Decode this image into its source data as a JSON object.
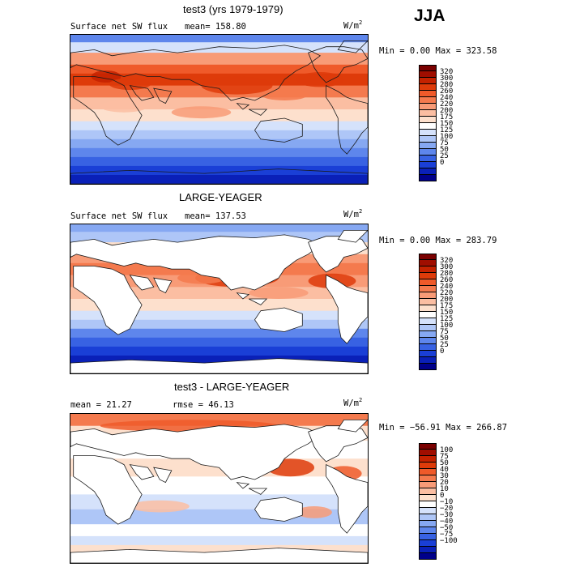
{
  "season": "JJA",
  "unit_base": "W/m",
  "unit_exp": "2",
  "panels": [
    {
      "title": "test3 (yrs 1979-1979)",
      "left_label": "Surface net SW flux",
      "center_label": "mean= 158.80",
      "stats": "Min =    0.00 Max = 323.58",
      "colors": [
        "#7a0000",
        "#a00e00",
        "#c42200",
        "#de3b0a",
        "#ef5a2a",
        "#f47a4e",
        "#f89b77",
        "#fbbea2",
        "#fde0cd",
        "#ffffff",
        "#d5e2fb",
        "#aec6f7",
        "#86a8f2",
        "#5e86ec",
        "#3862e3",
        "#1a3fd6",
        "#0a20b8",
        "#00008a"
      ],
      "labels": [
        "320",
        "300",
        "280",
        "260",
        "240",
        "220",
        "200",
        "175",
        "150",
        "125",
        "100",
        "75",
        "50",
        "25",
        "0"
      ],
      "map": "model"
    },
    {
      "title": "LARGE-YEAGER",
      "left_label": "Surface net SW flux",
      "center_label": "mean= 137.53",
      "stats": "Min =    0.00 Max = 283.79",
      "colors": [
        "#7a0000",
        "#a00e00",
        "#c42200",
        "#de3b0a",
        "#ef5a2a",
        "#f47a4e",
        "#f89b77",
        "#fbbea2",
        "#fde0cd",
        "#ffffff",
        "#d5e2fb",
        "#aec6f7",
        "#86a8f2",
        "#5e86ec",
        "#3862e3",
        "#1a3fd6",
        "#0a20b8",
        "#00008a"
      ],
      "labels": [
        "320",
        "300",
        "280",
        "260",
        "240",
        "220",
        "200",
        "175",
        "150",
        "125",
        "100",
        "75",
        "50",
        "25",
        "0"
      ],
      "map": "obs"
    },
    {
      "title": "test3 - LARGE-YEAGER",
      "left_label": "mean =  21.27",
      "center_label": "rmse =  46.13",
      "stats": "Min = −56.91 Max = 266.87",
      "colors": [
        "#7a0000",
        "#a00e00",
        "#c42200",
        "#de3b0a",
        "#ef5a2a",
        "#f47a4e",
        "#f89b77",
        "#fbbea2",
        "#fde0cd",
        "#ffffff",
        "#d5e2fb",
        "#aec6f7",
        "#86a8f2",
        "#5e86ec",
        "#3862e3",
        "#1a3fd6",
        "#0a20b8",
        "#00008a"
      ],
      "labels": [
        "100",
        "75",
        "50",
        "40",
        "30",
        "20",
        "10",
        "0",
        "−10",
        "−20",
        "−30",
        "−40",
        "−50",
        "−75",
        "−100"
      ],
      "map": "diff"
    }
  ]
}
